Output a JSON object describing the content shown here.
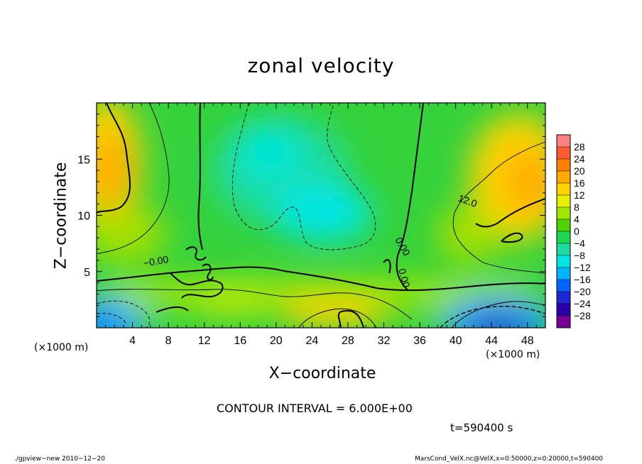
{
  "chart_data": {
    "type": "contour",
    "title": "zonal velocity",
    "xlabel": "X−coordinate",
    "ylabel": "Z−coordinate",
    "xunit_left": "(×1000 m)",
    "xunit_right": "(×1000 m)",
    "xlim": [
      0,
      50
    ],
    "ylim": [
      0,
      20
    ],
    "xticks": [
      "4",
      "8",
      "12",
      "16",
      "20",
      "24",
      "28",
      "32",
      "36",
      "40",
      "44",
      "48"
    ],
    "yticks": [
      "5",
      "10",
      "15"
    ],
    "contour_labels": [
      "−0.00",
      "12.0",
      "0.00",
      "0.00"
    ],
    "colorbar": {
      "levels": [
        "28",
        "24",
        "20",
        "16",
        "12",
        "8",
        "4",
        "0",
        "−4",
        "−8",
        "−12",
        "−16",
        "−20",
        "−24",
        "−28"
      ],
      "colors": [
        "#ff8080",
        "#ff5a32",
        "#ff8000",
        "#ffaa00",
        "#ffd200",
        "#e6f000",
        "#a0e600",
        "#50d200",
        "#1ed750",
        "#1edca0",
        "#00e6e6",
        "#00b4ff",
        "#0064ff",
        "#1e28d2",
        "#2800aa",
        "#780096"
      ]
    },
    "field": {
      "note_cells": "",
      "regions": [
        {
          "x": 5,
          "y": 15,
          "value": 14
        },
        {
          "x": 46,
          "y": 13,
          "value": 16
        },
        {
          "x": 22,
          "y": 13,
          "value": -9
        },
        {
          "x": 27,
          "y": 9,
          "value": -11
        },
        {
          "x": 10,
          "y": 7,
          "value": 0
        },
        {
          "x": 26,
          "y": 2,
          "value": 10
        },
        {
          "x": 2,
          "y": 1,
          "value": -15
        },
        {
          "x": 45,
          "y": 1,
          "value": -22
        },
        {
          "x": 35,
          "y": 5,
          "value": 2
        }
      ]
    },
    "contour_interval": "CONTOUR INTERVAL = 6.000E+00",
    "time": "t=590400 s"
  },
  "footer": {
    "left": "./gpview−new  2010−12−20",
    "right": "MarsCond_VelX.nc@VelX,x=0:50000,z=0:20000,t=590400"
  }
}
